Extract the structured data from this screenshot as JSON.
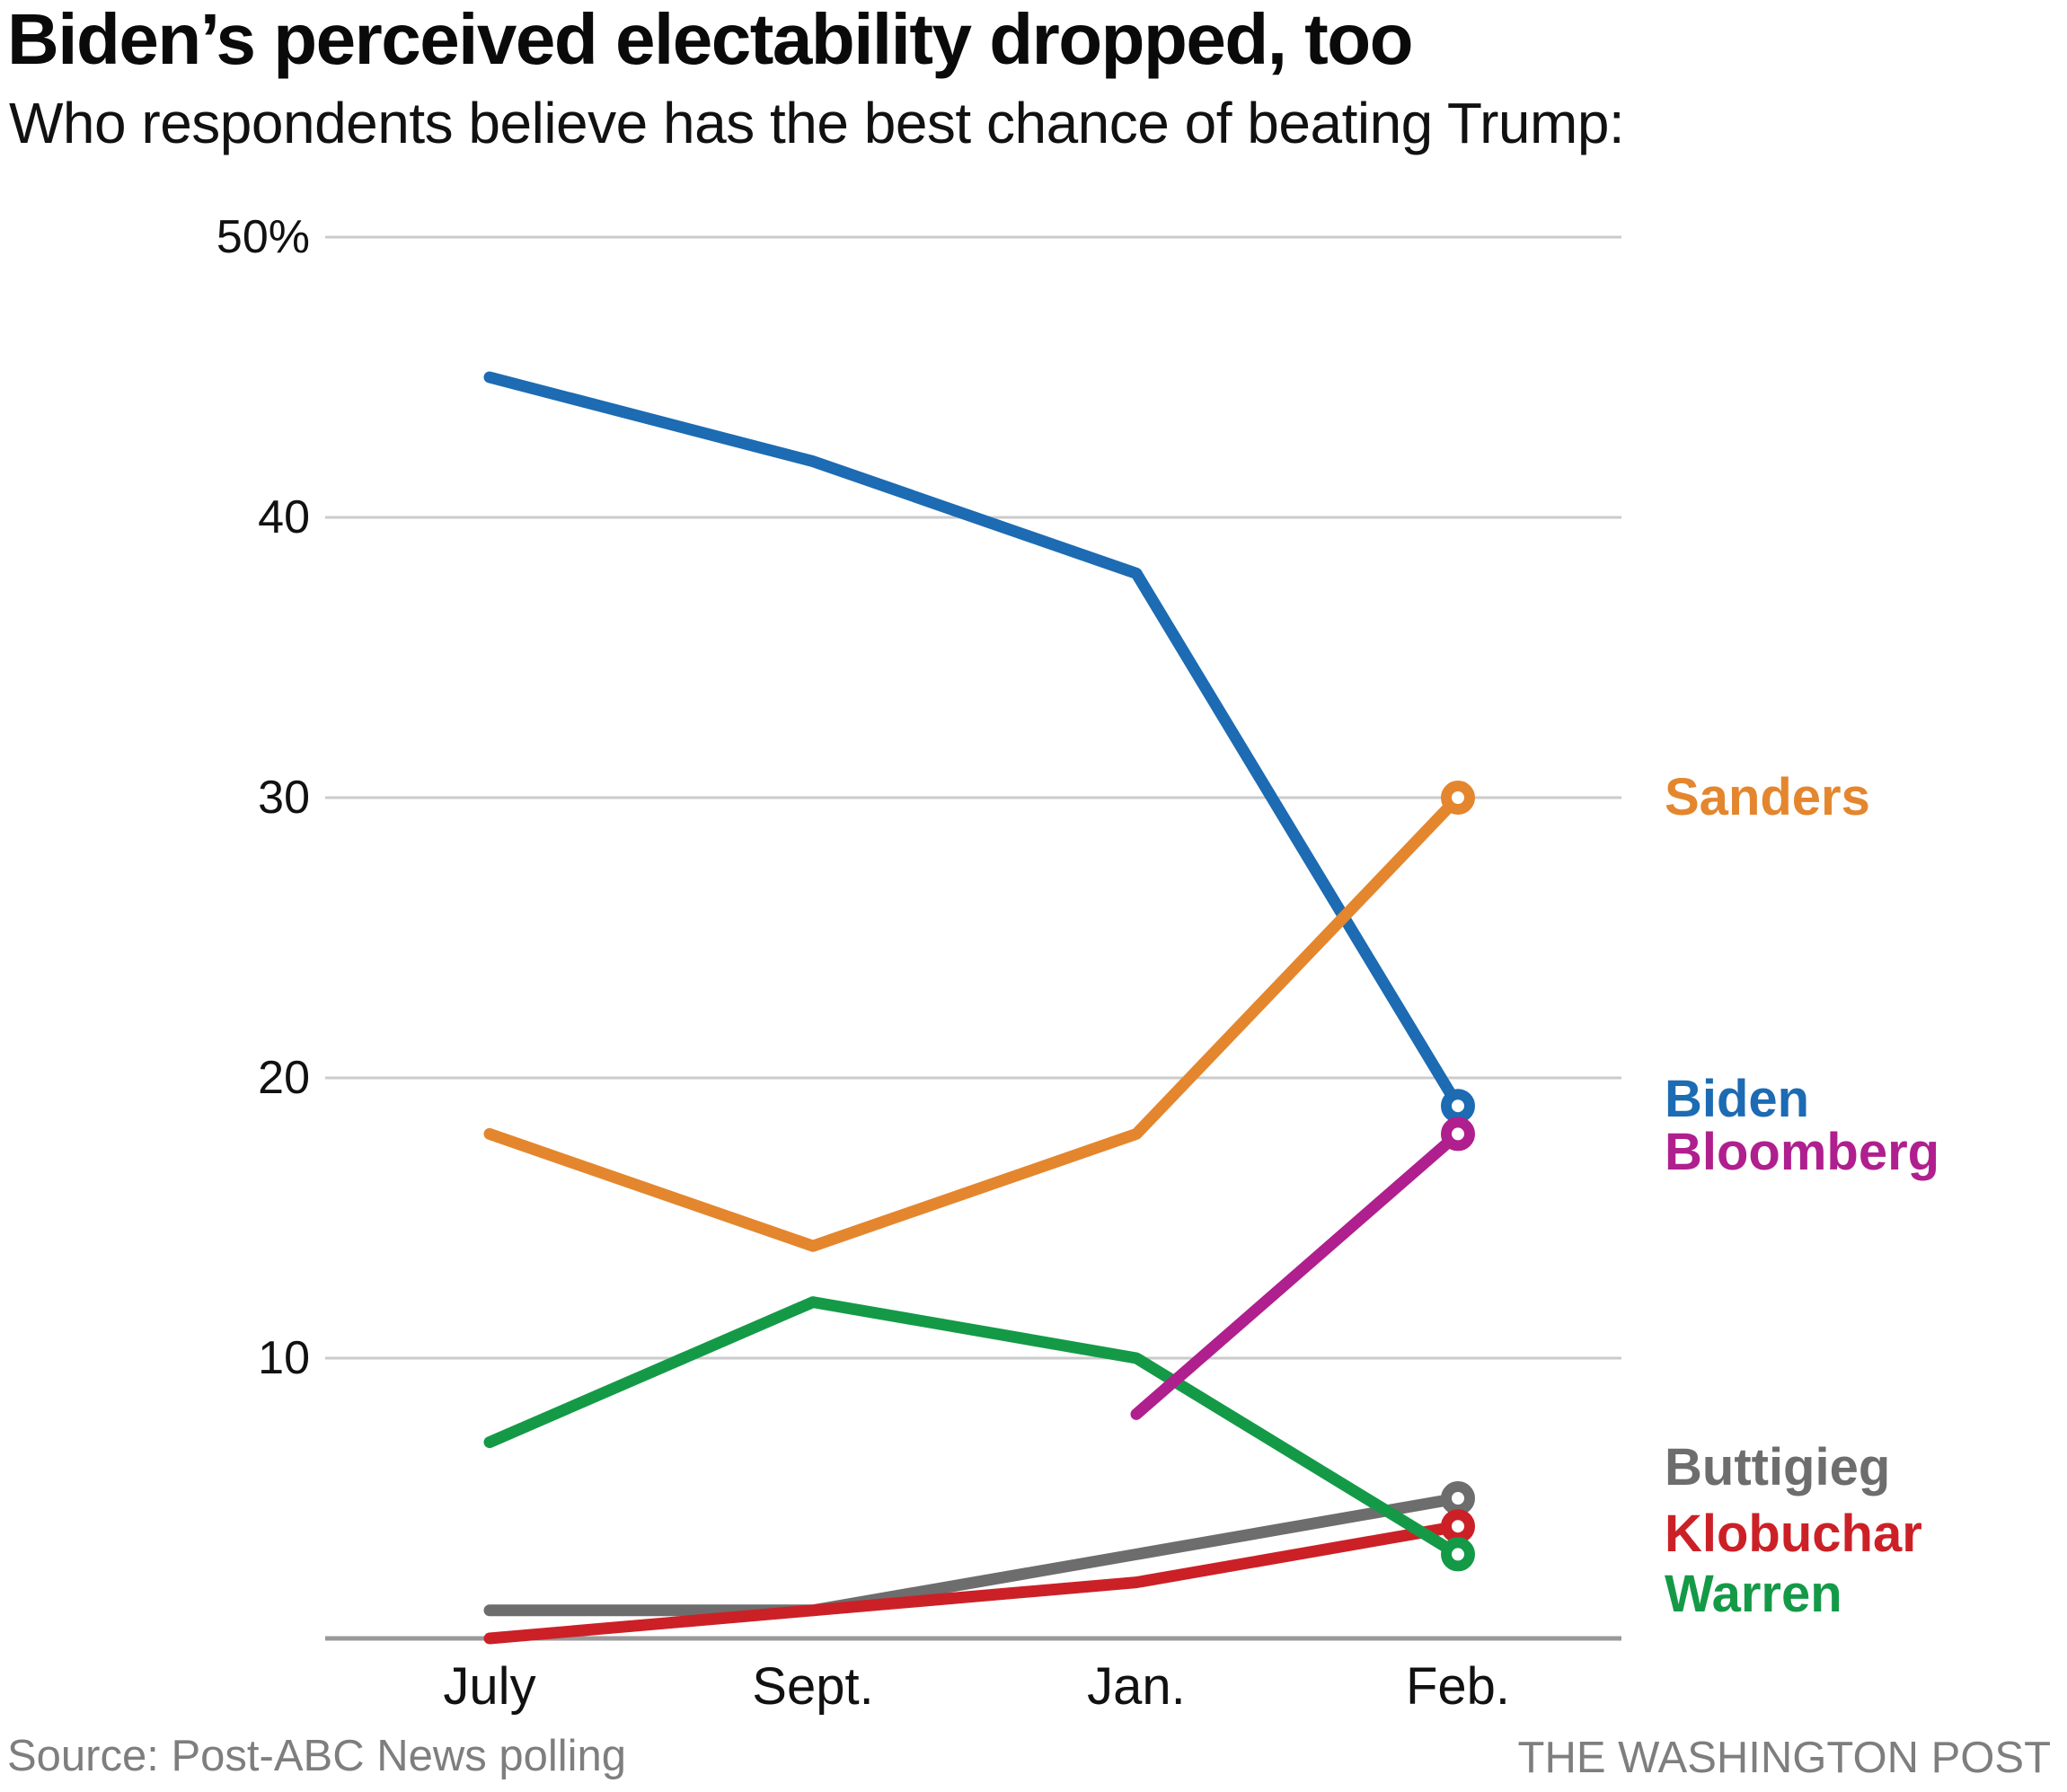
{
  "chart_data": {
    "type": "line",
    "title": "Biden’s perceived electability dropped, too",
    "subtitle": "Who respondents believe has the best chance of beating Trump:",
    "categories": [
      "July",
      "Sept.",
      "Jan.",
      "Feb."
    ],
    "series": [
      {
        "name": "Buttigieg",
        "color": "#6d6d6d",
        "values": [
          1,
          1,
          3,
          5
        ]
      },
      {
        "name": "Klobuchar",
        "color": "#cc2027",
        "values": [
          0,
          1,
          2,
          4
        ]
      },
      {
        "name": "Warren",
        "color": "#149a47",
        "values": [
          7,
          12,
          10,
          3
        ]
      },
      {
        "name": "Biden",
        "color": "#1c6bb3",
        "values": [
          45,
          42,
          38,
          19
        ]
      },
      {
        "name": "Sanders",
        "color": "#e4862e",
        "values": [
          18,
          14,
          18,
          30
        ]
      },
      {
        "name": "Bloomberg",
        "color": "#b01f8e",
        "values": [
          null,
          null,
          8,
          18
        ]
      }
    ],
    "y_ticks": [
      {
        "value": 50,
        "label": "50%"
      },
      {
        "value": 40,
        "label": "40"
      },
      {
        "value": 30,
        "label": "30"
      },
      {
        "value": 20,
        "label": "20"
      },
      {
        "value": 10,
        "label": "10"
      }
    ],
    "ylim": [
      0,
      50
    ],
    "grid": true,
    "legend_position": "right",
    "gridline_color": "#cbcbcb",
    "axis_color": "#999999"
  },
  "footer": {
    "source": "Source: Post-ABC News polling",
    "credit": "THE WASHINGTON POST"
  }
}
